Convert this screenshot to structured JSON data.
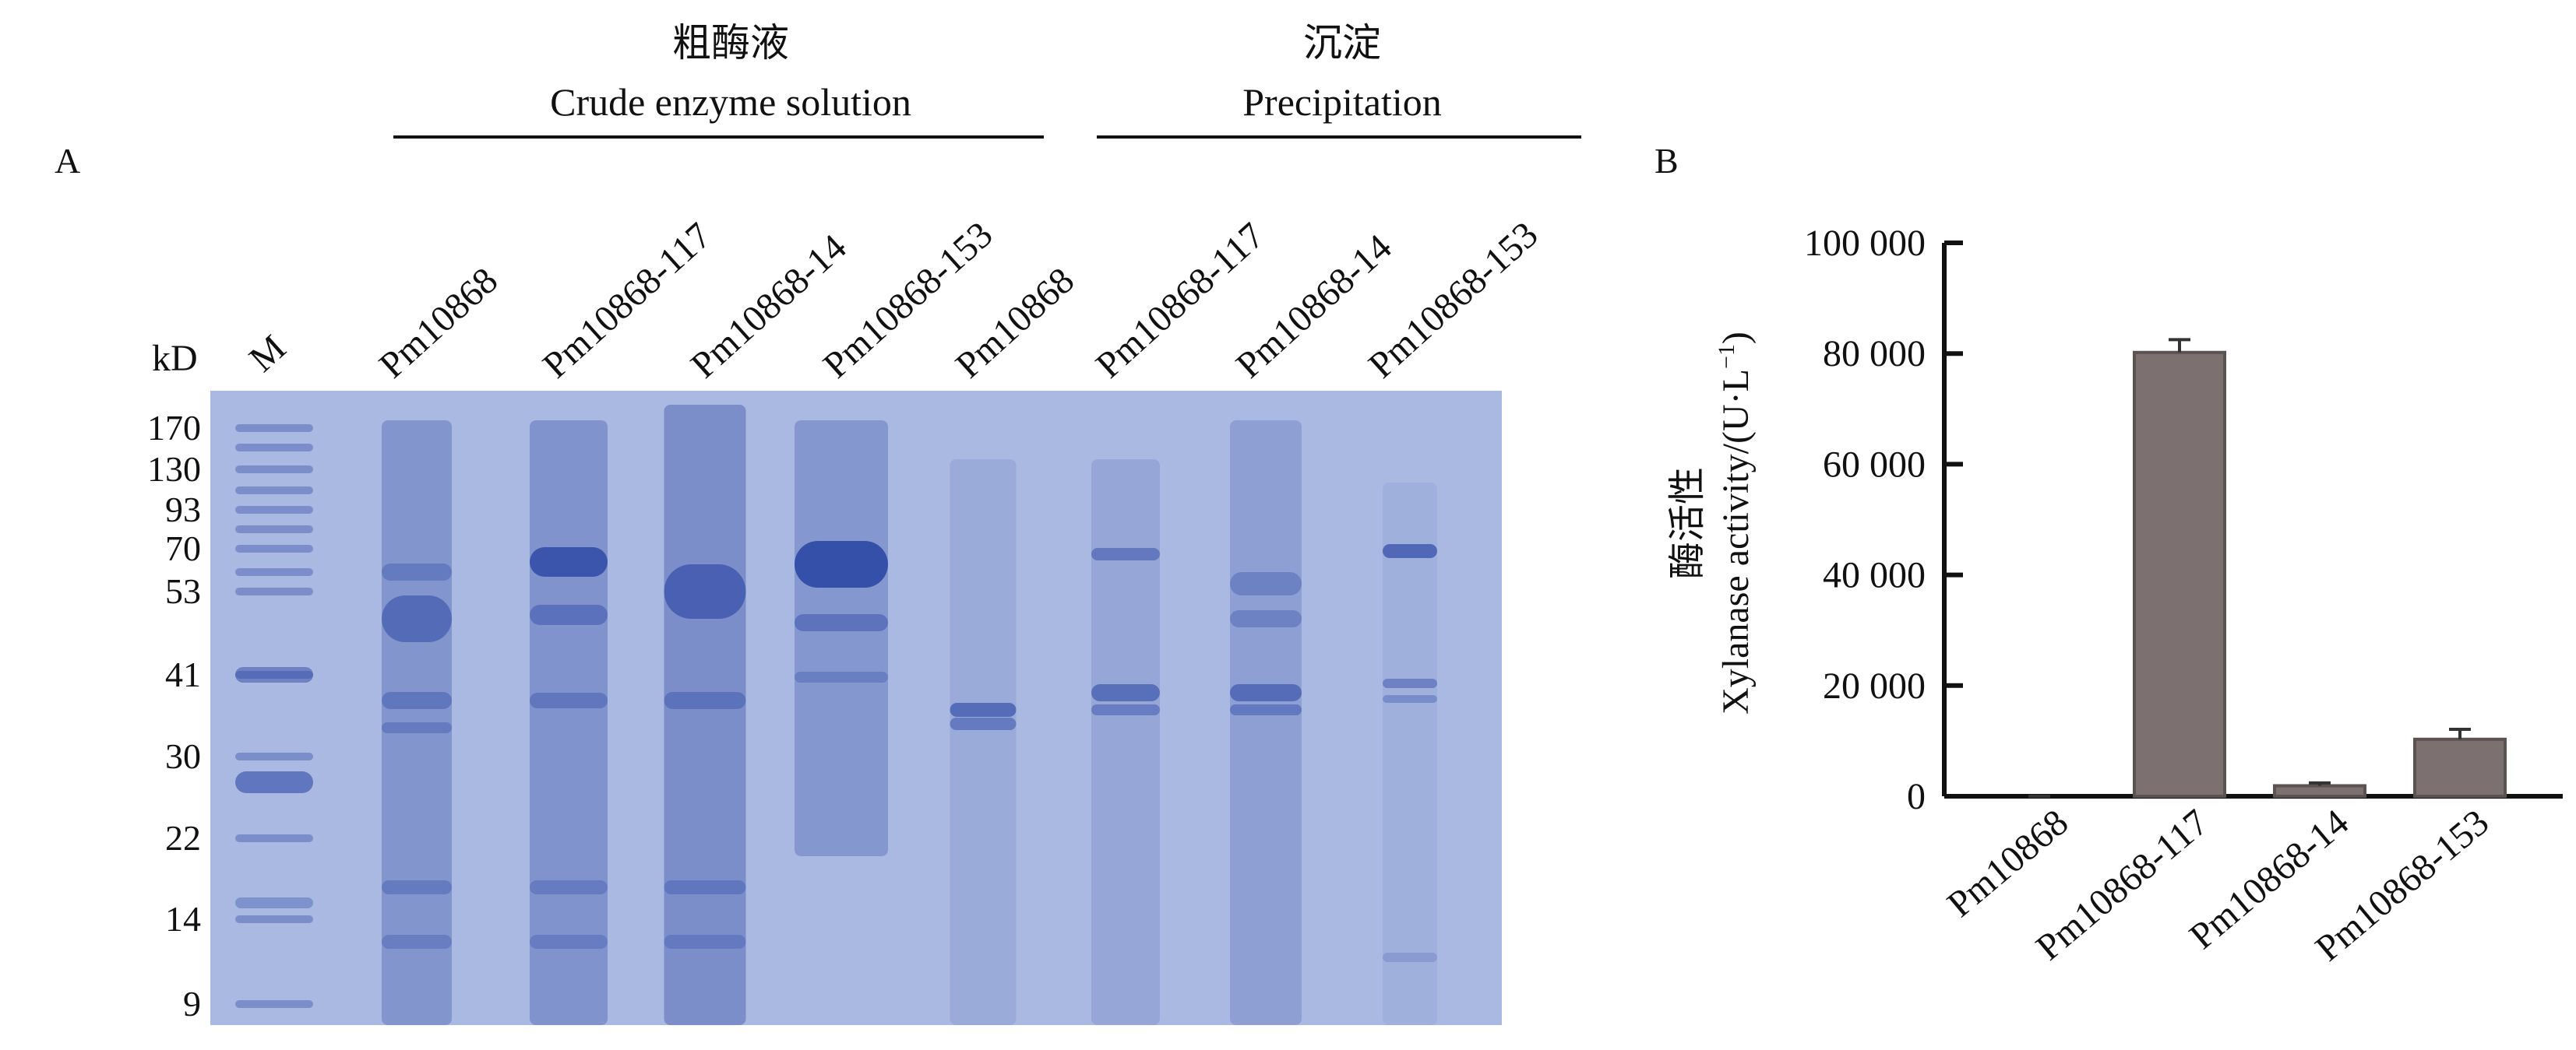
{
  "panel_a": {
    "label": "A",
    "group_crude": {
      "cn": "粗酶液",
      "en": "Crude enzyme solution"
    },
    "group_precip": {
      "cn": "沉淀",
      "en": "Precipitation"
    },
    "kd_label": "kD",
    "marker_label": "M",
    "lanes": [
      "Pm10868",
      "Pm10868-117",
      "Pm10868-14",
      "Pm10868-153",
      "Pm10868",
      "Pm10868-117",
      "Pm10868-14",
      "Pm10868-153"
    ],
    "marker_sizes": [
      "170",
      "130",
      "93",
      "70",
      "53",
      "41",
      "30",
      "22",
      "14",
      "9"
    ],
    "gel_color": "#aab9e1",
    "band_color": "#2f4aa6"
  },
  "panel_b": {
    "label": "B",
    "bar_color": "#7d7070"
  },
  "chart_data": {
    "type": "bar",
    "categories": [
      "Pm10868",
      "Pm10868-117",
      "Pm10868-14",
      "Pm10868-153"
    ],
    "values": [
      0,
      80200,
      1900,
      10300
    ],
    "errors": [
      0,
      2300,
      500,
      1800
    ],
    "ylabel_cn": "酶活性",
    "ylabel_en": "Xylanase activity/(U·L",
    "ylabel_sup": "−1",
    "ylabel_close": ")",
    "ylim": [
      0,
      100000
    ],
    "yticks": [
      0,
      20000,
      40000,
      60000,
      80000,
      100000
    ],
    "ytick_labels": [
      "0",
      "20 000",
      "40 000",
      "60 000",
      "80 000",
      "100 000"
    ]
  }
}
